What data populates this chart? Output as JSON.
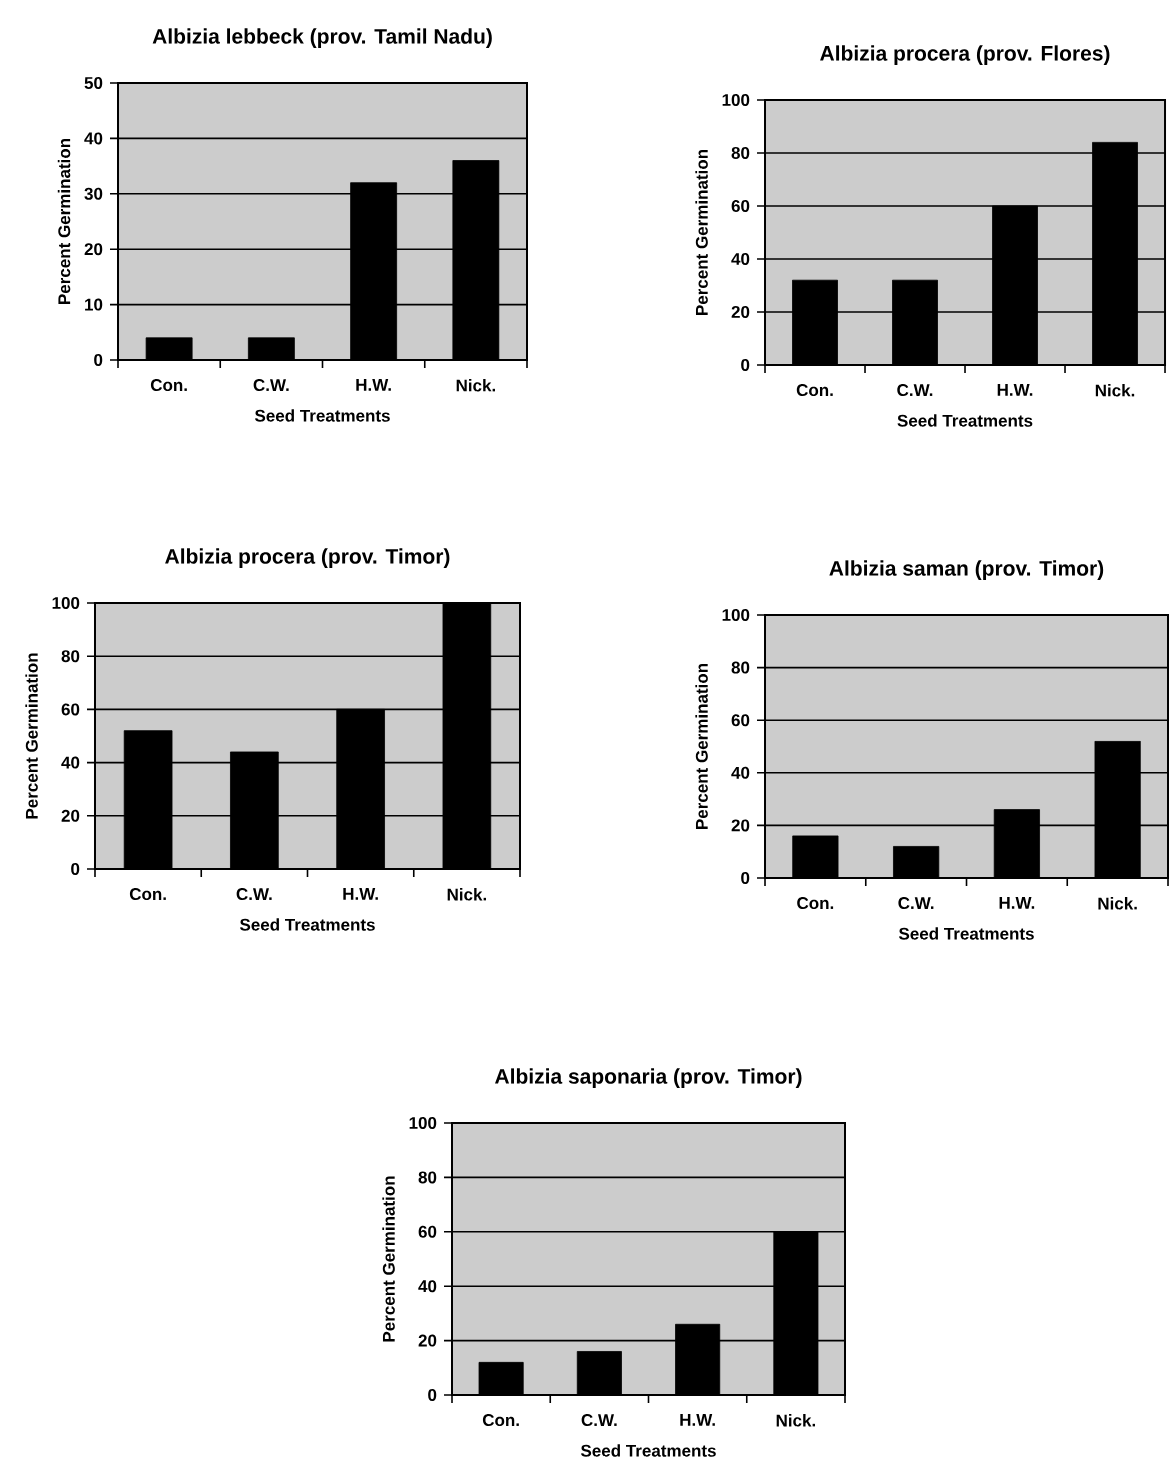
{
  "chart_data": [
    {
      "type": "bar",
      "title": "Albizia lebbeck (prov. Tamil Nadu)",
      "xlabel": "Seed Treatments",
      "ylabel": "Percent Germination",
      "categories": [
        "Con.",
        "C.W.",
        "H.W.",
        "Nick."
      ],
      "values": [
        4,
        4,
        32,
        36
      ],
      "color": "#000000",
      "ylim": [
        0,
        50
      ],
      "yticks": [
        0,
        10,
        20,
        30,
        40,
        50
      ],
      "grid": "y"
    },
    {
      "type": "bar",
      "title": "Albizia procera (prov. Flores)",
      "xlabel": "Seed Treatments",
      "ylabel": "Percent Germination",
      "categories": [
        "Con.",
        "C.W.",
        "H.W.",
        "Nick."
      ],
      "values": [
        32,
        32,
        60,
        84
      ],
      "color": "#000000",
      "ylim": [
        0,
        100
      ],
      "yticks": [
        0,
        20,
        40,
        60,
        80,
        100
      ],
      "grid": "y"
    },
    {
      "type": "bar",
      "title": "Albizia procera (prov. Timor)",
      "xlabel": "Seed Treatments",
      "ylabel": "Percent Germination",
      "categories": [
        "Con.",
        "C.W.",
        "H.W.",
        "Nick."
      ],
      "values": [
        52,
        44,
        60,
        100
      ],
      "color": "#000000",
      "ylim": [
        0,
        100
      ],
      "yticks": [
        0,
        20,
        40,
        60,
        80,
        100
      ],
      "grid": "y"
    },
    {
      "type": "bar",
      "title": "Albizia saman (prov. Timor)",
      "xlabel": "Seed Treatments",
      "ylabel": "Percent Germination",
      "categories": [
        "Con.",
        "C.W.",
        "H.W.",
        "Nick."
      ],
      "values": [
        16,
        12,
        26,
        52
      ],
      "color": "#000000",
      "ylim": [
        0,
        100
      ],
      "yticks": [
        0,
        20,
        40,
        60,
        80,
        100
      ],
      "grid": "y"
    },
    {
      "type": "bar",
      "title": "Albizia saponaria (prov. Timor)",
      "xlabel": "Seed Treatments",
      "ylabel": "Percent Germination",
      "categories": [
        "Con.",
        "C.W.",
        "H.W.",
        "Nick."
      ],
      "values": [
        12,
        16,
        26,
        60
      ],
      "color": "#000000",
      "ylim": [
        0,
        100
      ],
      "yticks": [
        0,
        20,
        40,
        60,
        80,
        100
      ],
      "grid": "y"
    }
  ]
}
